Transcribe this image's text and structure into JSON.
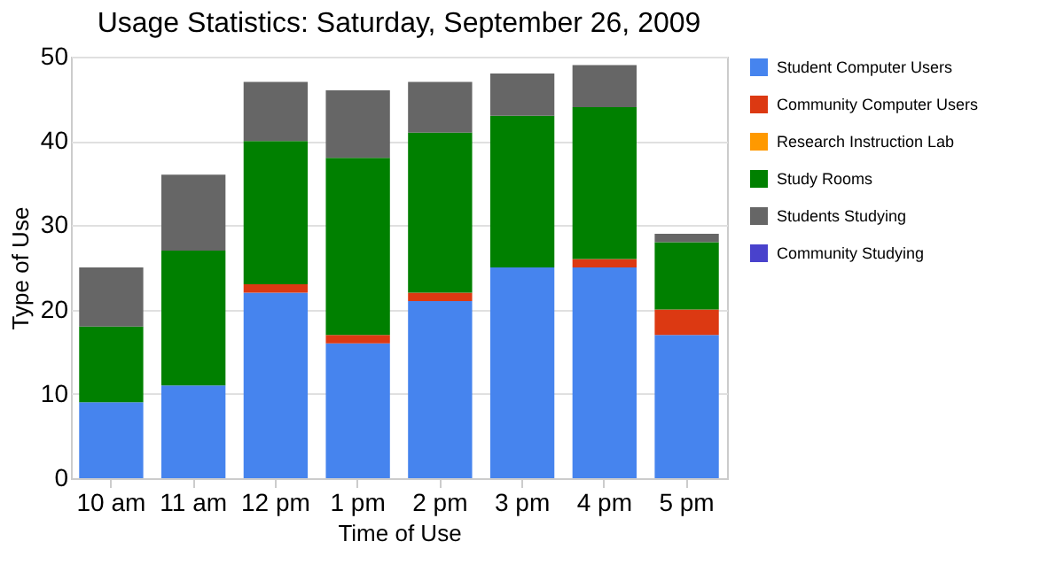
{
  "chart_data": {
    "type": "bar",
    "title": "Usage Statistics: Saturday, September 26, 2009",
    "xlabel": "Time of Use",
    "ylabel": "Type of Use",
    "categories": [
      "10 am",
      "11 am",
      "12 pm",
      "1 pm",
      "2 pm",
      "3 pm",
      "4 pm",
      "5 pm"
    ],
    "stacked": true,
    "series": [
      {
        "name": "Student Computer Users",
        "color": "#4684ee",
        "values": [
          9,
          11,
          22,
          16,
          21,
          25,
          25,
          17
        ]
      },
      {
        "name": "Community Computer Users",
        "color": "#dc3912",
        "values": [
          0,
          0,
          1,
          1,
          1,
          0,
          1,
          3
        ]
      },
      {
        "name": "Research Instruction Lab",
        "color": "#ff9900",
        "values": [
          0,
          0,
          0,
          0,
          0,
          0,
          0,
          0
        ]
      },
      {
        "name": "Study Rooms",
        "color": "#008000",
        "values": [
          9,
          16,
          17,
          21,
          19,
          18,
          18,
          8
        ]
      },
      {
        "name": "Students Studying",
        "color": "#666666",
        "values": [
          7,
          9,
          7,
          8,
          6,
          5,
          5,
          1
        ]
      },
      {
        "name": "Community Studying",
        "color": "#4942cc",
        "values": [
          0,
          0,
          0,
          0,
          0,
          0,
          0,
          0
        ]
      }
    ],
    "ylim": [
      0,
      50
    ],
    "yticks": [
      0,
      10,
      20,
      30,
      40,
      50
    ],
    "grid": "y",
    "legend": "right"
  }
}
